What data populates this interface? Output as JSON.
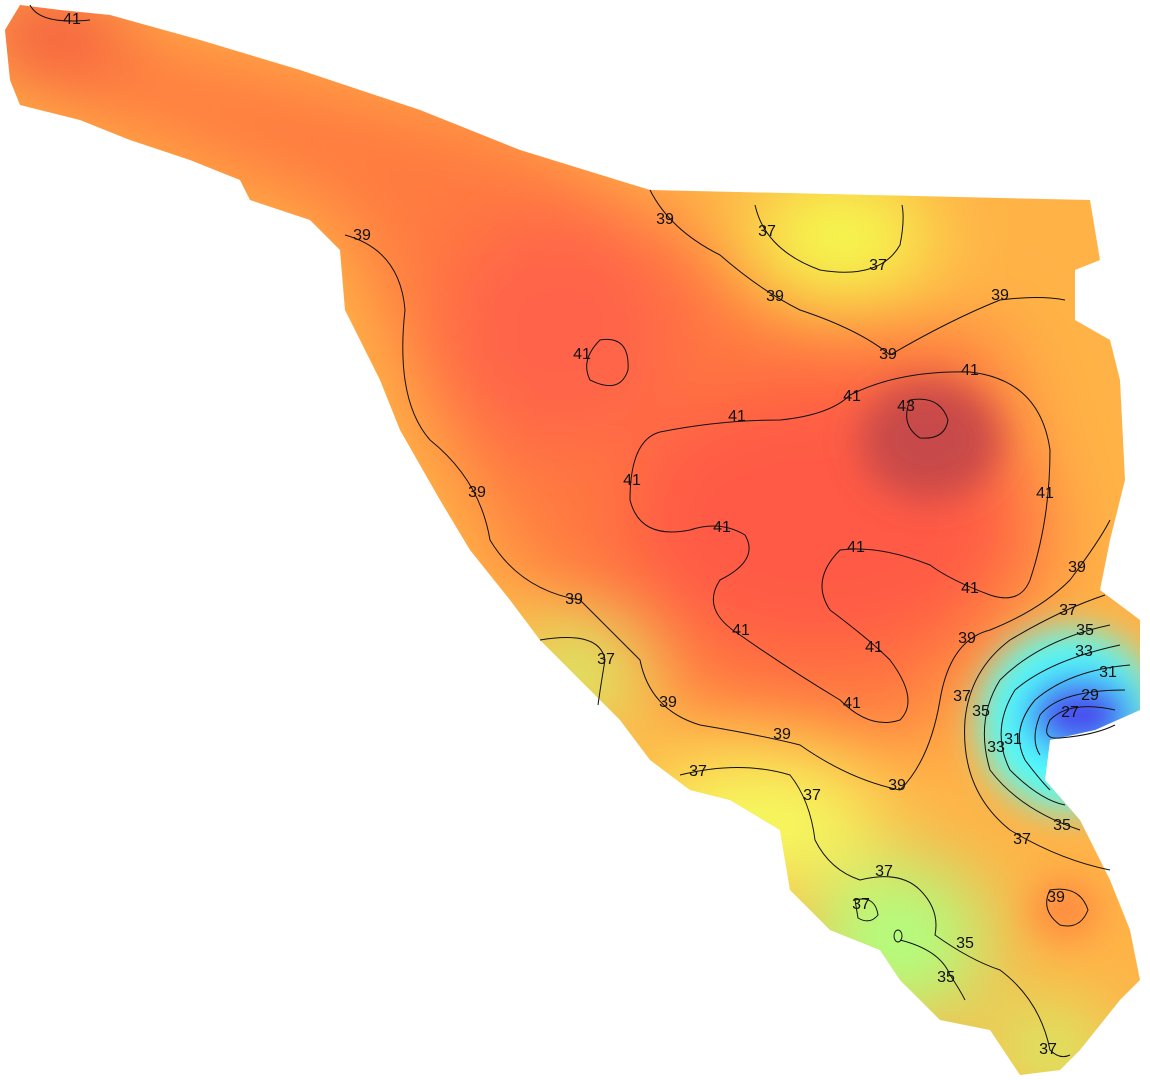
{
  "contour_labels": [
    41,
    39,
    39,
    37,
    37,
    39,
    39,
    39,
    41,
    41,
    41,
    43,
    41,
    41,
    41,
    41,
    41,
    39,
    39,
    41,
    39,
    37,
    41,
    35,
    39,
    41,
    33,
    37,
    31,
    37,
    29,
    39,
    41,
    35,
    27,
    31,
    33,
    39,
    37,
    39,
    37,
    35,
    37,
    37,
    37,
    39,
    35,
    35,
    37
  ]
}
